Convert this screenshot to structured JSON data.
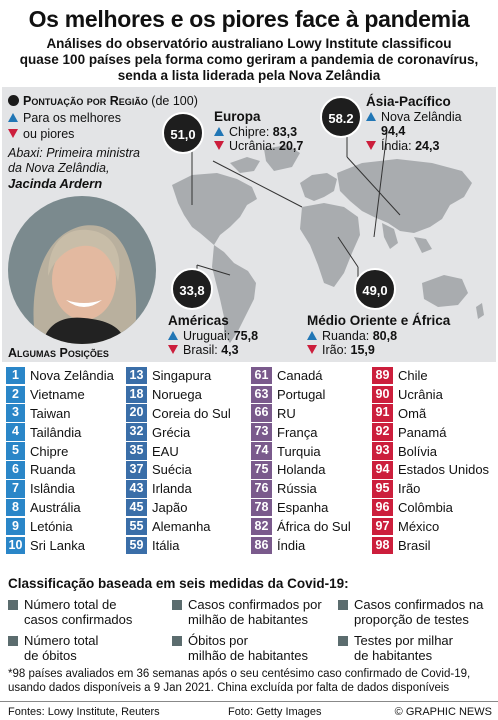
{
  "header": {
    "title": "Os melhores e os piores face à pandemia",
    "subtitle_line1": "Análises do observatório australiano Lowy Institute classificou",
    "subtitle_line2": "quase 100 países pela forma como geriram a pandemia de coronavírus,",
    "subtitle_line3": "senda a lista liderada pela Nova Zelândia"
  },
  "legend": {
    "heading_bold": "Pontuação por Região",
    "heading_rest": " (de 100)",
    "up_line1": "Para os melhores",
    "down_line1": "ou piores"
  },
  "caption": {
    "line1": "Abaxi: Primeira ministra",
    "line2": "da Nova Zelândia,",
    "name": "Jacinda Ardern"
  },
  "regions": {
    "europa": {
      "score": "51,0",
      "name": "Europa",
      "best": "Chipre: ",
      "best_val": "83,3",
      "worst": "Ucrânia: ",
      "worst_val": "20,7"
    },
    "asia": {
      "score": "58.2",
      "name": "Ásia-Pacífico",
      "best": "Nova Zelândia",
      "best_val": "94,4",
      "worst": "Índia: ",
      "worst_val": "24,3"
    },
    "americas": {
      "score": "33,8",
      "name": "Américas",
      "best": "Uruguai: ",
      "best_val": "75,8",
      "worst": "Brasil: ",
      "worst_val": "4,3"
    },
    "medio": {
      "score": "49,0",
      "name": "Médio Oriente e África",
      "best": "Ruanda: ",
      "best_val": "80,8",
      "worst": "Irão: ",
      "worst_val": "15,9"
    }
  },
  "rankings_heading": "Algumas Posições",
  "rankings": [
    {
      "color": "#2a86c8",
      "items": [
        {
          "rank": "1",
          "name": "Nova Zelândia"
        },
        {
          "rank": "2",
          "name": "Vietname"
        },
        {
          "rank": "3",
          "name": "Taiwan"
        },
        {
          "rank": "4",
          "name": "Tailândia"
        },
        {
          "rank": "5",
          "name": "Chipre"
        },
        {
          "rank": "6",
          "name": "Ruanda"
        },
        {
          "rank": "7",
          "name": "Islândia"
        },
        {
          "rank": "8",
          "name": "Austrália"
        },
        {
          "rank": "9",
          "name": "Letónia"
        },
        {
          "rank": "10",
          "name": "Sri Lanka"
        }
      ]
    },
    {
      "color": "#3a6ea8",
      "items": [
        {
          "rank": "13",
          "name": "Singapura"
        },
        {
          "rank": "18",
          "name": "Noruega"
        },
        {
          "rank": "20",
          "name": "Coreia do Sul"
        },
        {
          "rank": "32",
          "name": "Grécia"
        },
        {
          "rank": "35",
          "name": "EAU"
        },
        {
          "rank": "37",
          "name": "Suécia"
        },
        {
          "rank": "43",
          "name": "Irlanda"
        },
        {
          "rank": "45",
          "name": "Japão"
        },
        {
          "rank": "55",
          "name": "Alemanha"
        },
        {
          "rank": "59",
          "name": "Itália"
        }
      ]
    },
    {
      "color": "#7a5a8c",
      "items": [
        {
          "rank": "61",
          "name": "Canadá"
        },
        {
          "rank": "63",
          "name": "Portugal"
        },
        {
          "rank": "66",
          "name": "RU"
        },
        {
          "rank": "73",
          "name": "França"
        },
        {
          "rank": "74",
          "name": "Turquia"
        },
        {
          "rank": "75",
          "name": "Holanda"
        },
        {
          "rank": "76",
          "name": "Rússia"
        },
        {
          "rank": "78",
          "name": "Espanha"
        },
        {
          "rank": "82",
          "name": "África do Sul"
        },
        {
          "rank": "86",
          "name": "Índia"
        }
      ]
    },
    {
      "color": "#cc1e3c",
      "items": [
        {
          "rank": "89",
          "name": "Chile"
        },
        {
          "rank": "90",
          "name": "Ucrânia"
        },
        {
          "rank": "91",
          "name": "Omã"
        },
        {
          "rank": "92",
          "name": "Panamá"
        },
        {
          "rank": "93",
          "name": "Bolívia"
        },
        {
          "rank": "94",
          "name": "Estados Unidos"
        },
        {
          "rank": "95",
          "name": "Irão"
        },
        {
          "rank": "96",
          "name": "Colômbia"
        },
        {
          "rank": "97",
          "name": "México"
        },
        {
          "rank": "98",
          "name": "Brasil"
        }
      ]
    }
  ],
  "classification": {
    "heading": "Classificação baseada em seis medidas da Covid-19:",
    "m1a": "Número total de",
    "m1b": "casos confirmados",
    "m2a": "Casos confirmados por",
    "m2b": "milhão de habitantes",
    "m3a": "Casos confirmados na",
    "m3b": "proporção de testes",
    "m4a": "Número total",
    "m4b": "de óbitos",
    "m5a": "Óbitos por",
    "m5b": "milhão de habitantes",
    "m6a": "Testes por milhar",
    "m6b": "de habitantes"
  },
  "footnote": {
    "line1": "*98 países avaliados em 36 semanas após o seu centésimo caso confirmado de Covid-19,",
    "line2": "usando dados disponíveis a 9 Jan 2021. China excluída por falta de dados disponíveis"
  },
  "footer": {
    "sources": "Fontes: Lowy Institute, Reuters",
    "photo": "Foto: Getty Images",
    "credit": "© GRAPHIC NEWS"
  },
  "colors": {
    "up": "#2176b5",
    "down": "#cc1e3c",
    "panel": "#e3e4e6",
    "map": "#a9acaf"
  }
}
